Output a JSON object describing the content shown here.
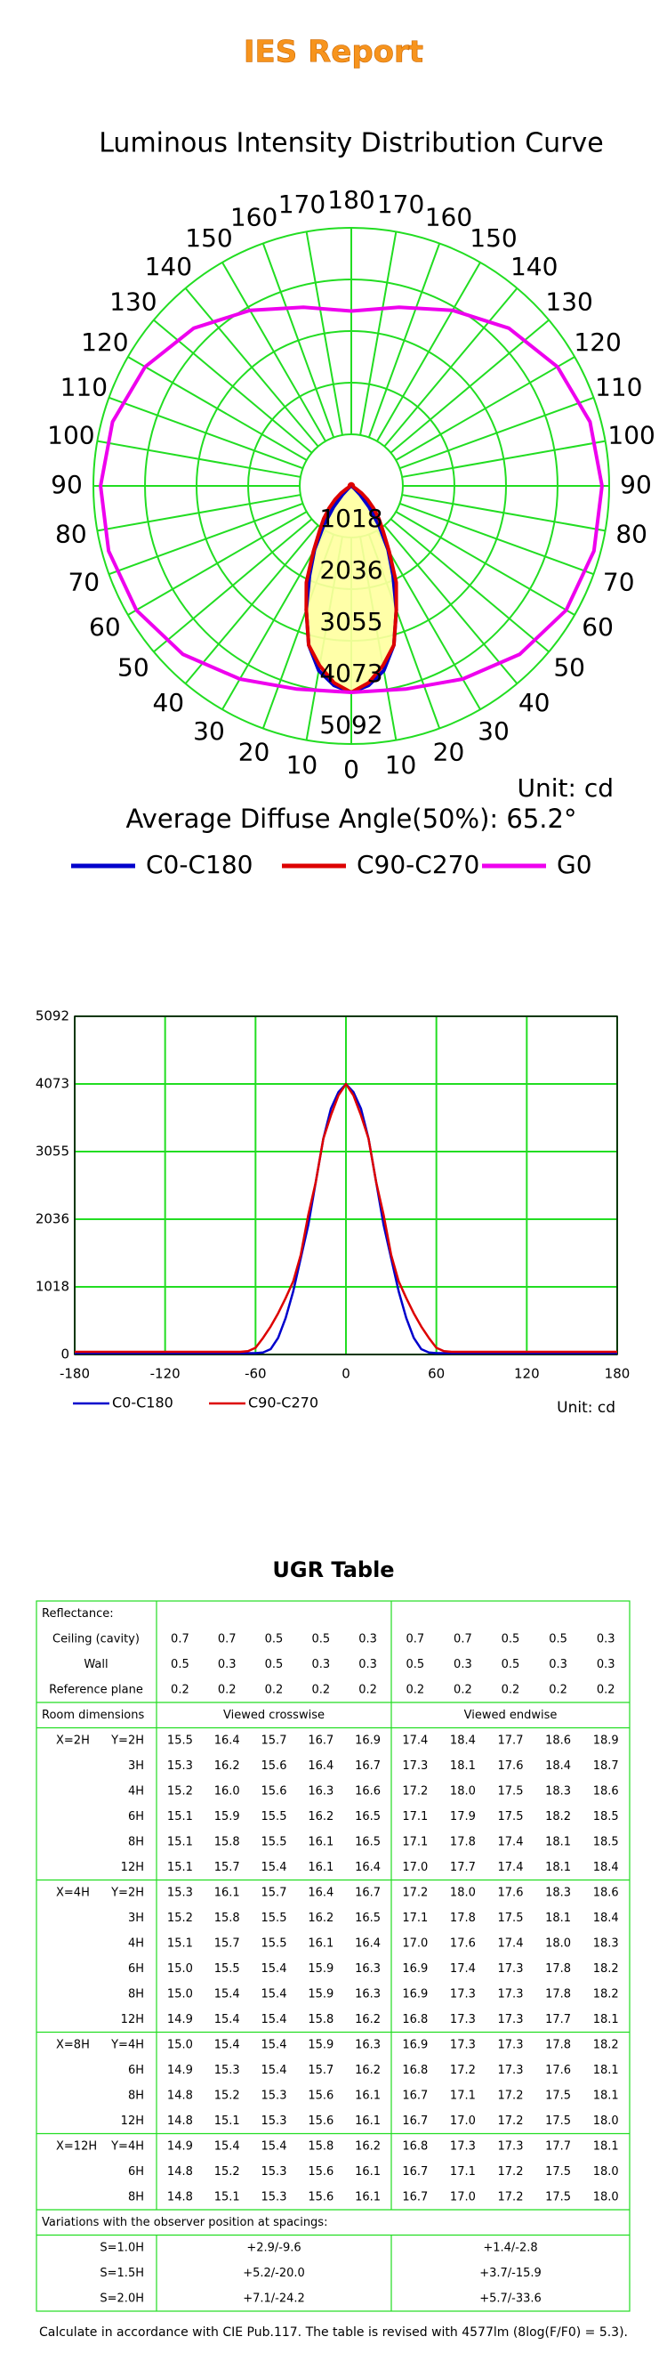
{
  "header": {
    "title": "IES Report"
  },
  "chart_data": [
    {
      "type": "polar",
      "title": "Luminous Intensity Distribution Curve",
      "rlim": [
        0,
        5092
      ],
      "rticks": [
        1018,
        2036,
        3055,
        4073,
        5092
      ],
      "angle_ticks": [
        0,
        10,
        20,
        30,
        40,
        50,
        60,
        70,
        80,
        90,
        100,
        110,
        120,
        130,
        140,
        150,
        160,
        170,
        180
      ],
      "grid": true,
      "unit_label": "Unit: cd",
      "annotation": "Average Diffuse Angle(50%): 65.2°",
      "series": [
        {
          "name": "C0-C180",
          "color": "#0000cc",
          "x": [
            -180,
            -150,
            -120,
            -90,
            -70,
            -65,
            -60,
            -55,
            -50,
            -45,
            -40,
            -35,
            -30,
            -25,
            -20,
            -15,
            -10,
            -5,
            0,
            5,
            10,
            15,
            20,
            25,
            30,
            35,
            40,
            45,
            50,
            55,
            60,
            65,
            70,
            90,
            120,
            150,
            180
          ],
          "values": [
            20,
            20,
            20,
            20,
            20,
            20,
            20,
            30,
            80,
            250,
            550,
            950,
            1450,
            1950,
            2600,
            3250,
            3700,
            3950,
            4073,
            3950,
            3700,
            3250,
            2600,
            1950,
            1450,
            950,
            550,
            250,
            80,
            30,
            20,
            20,
            20,
            20,
            20,
            20,
            20
          ]
        },
        {
          "name": "C90-C270",
          "color": "#dd0000",
          "x": [
            -180,
            -150,
            -120,
            -90,
            -70,
            -65,
            -60,
            -55,
            -50,
            -45,
            -40,
            -35,
            -30,
            -25,
            -20,
            -15,
            -10,
            -5,
            0,
            5,
            10,
            15,
            20,
            25,
            30,
            35,
            40,
            45,
            50,
            55,
            60,
            65,
            70,
            90,
            120,
            150,
            180
          ],
          "values": [
            40,
            40,
            40,
            40,
            40,
            50,
            100,
            250,
            420,
            620,
            850,
            1100,
            1500,
            2100,
            2600,
            3250,
            3600,
            3900,
            4073,
            3900,
            3600,
            3250,
            2600,
            2100,
            1500,
            1100,
            850,
            620,
            420,
            250,
            100,
            50,
            40,
            40,
            40,
            40,
            40
          ]
        },
        {
          "name": "G0",
          "color": "#ee00ee",
          "x": [
            -180,
            -165,
            -150,
            -135,
            -120,
            -105,
            -90,
            -75,
            -60,
            -45,
            -30,
            -15,
            0,
            15,
            30,
            45,
            60,
            75,
            90,
            105,
            120,
            135,
            150,
            165,
            180
          ],
          "values": [
            3450,
            3650,
            4000,
            4400,
            4700,
            4880,
            4950,
            4960,
            4900,
            4700,
            4400,
            4150,
            4073,
            4150,
            4400,
            4700,
            4900,
            4960,
            4950,
            4880,
            4700,
            4400,
            4000,
            3650,
            3450
          ]
        }
      ]
    },
    {
      "type": "line",
      "xlim": [
        -180,
        180
      ],
      "xticks": [
        -180,
        -120,
        -60,
        0,
        60,
        120,
        180
      ],
      "ylim": [
        0,
        5092
      ],
      "yticks": [
        0,
        1018,
        2036,
        3055,
        4073,
        5092
      ],
      "grid": true,
      "unit_label": "Unit: cd",
      "series": [
        {
          "name": "C0-C180",
          "color": "#0000cc",
          "x": [
            -180,
            -150,
            -120,
            -90,
            -70,
            -65,
            -60,
            -55,
            -50,
            -45,
            -40,
            -35,
            -30,
            -25,
            -20,
            -15,
            -10,
            -5,
            0,
            5,
            10,
            15,
            20,
            25,
            30,
            35,
            40,
            45,
            50,
            55,
            60,
            65,
            70,
            90,
            120,
            150,
            180
          ],
          "values": [
            20,
            20,
            20,
            20,
            20,
            20,
            20,
            30,
            80,
            250,
            550,
            950,
            1450,
            1950,
            2600,
            3250,
            3700,
            3950,
            4073,
            3950,
            3700,
            3250,
            2600,
            1950,
            1450,
            950,
            550,
            250,
            80,
            30,
            20,
            20,
            20,
            20,
            20,
            20,
            20
          ]
        },
        {
          "name": "C90-C270",
          "color": "#dd0000",
          "x": [
            -180,
            -150,
            -120,
            -90,
            -70,
            -65,
            -60,
            -55,
            -50,
            -45,
            -40,
            -35,
            -30,
            -25,
            -20,
            -15,
            -10,
            -5,
            0,
            5,
            10,
            15,
            20,
            25,
            30,
            35,
            40,
            45,
            50,
            55,
            60,
            65,
            70,
            90,
            120,
            150,
            180
          ],
          "values": [
            40,
            40,
            40,
            40,
            40,
            50,
            100,
            250,
            420,
            620,
            850,
            1100,
            1500,
            2100,
            2600,
            3250,
            3600,
            3900,
            4073,
            3900,
            3600,
            3250,
            2600,
            2100,
            1500,
            1100,
            850,
            620,
            420,
            250,
            100,
            50,
            40,
            40,
            40,
            40,
            40
          ]
        }
      ]
    }
  ],
  "table": {
    "title": "UGR Table",
    "reflectance_label": "Reflectance:",
    "reflectance": [
      {
        "label": "Ceiling (cavity)",
        "cells": [
          "0.7",
          "0.7",
          "0.5",
          "0.5",
          "0.3",
          "0.7",
          "0.7",
          "0.5",
          "0.5",
          "0.3"
        ]
      },
      {
        "label": "Wall",
        "cells": [
          "0.5",
          "0.3",
          "0.5",
          "0.3",
          "0.3",
          "0.5",
          "0.3",
          "0.5",
          "0.3",
          "0.3"
        ]
      },
      {
        "label": "Reference plane",
        "cells": [
          "0.2",
          "0.2",
          "0.2",
          "0.2",
          "0.2",
          "0.2",
          "0.2",
          "0.2",
          "0.2",
          "0.2"
        ]
      }
    ],
    "room_label": "Room dimensions",
    "crosswise": "Viewed crosswise",
    "endwise": "Viewed endwise",
    "sections": [
      {
        "x": "X=2H",
        "rows": [
          {
            "y": "Y=2H",
            "cells": [
              "15.5",
              "16.4",
              "15.7",
              "16.7",
              "16.9",
              "17.4",
              "18.4",
              "17.7",
              "18.6",
              "18.9"
            ]
          },
          {
            "y": "3H",
            "cells": [
              "15.3",
              "16.2",
              "15.6",
              "16.4",
              "16.7",
              "17.3",
              "18.1",
              "17.6",
              "18.4",
              "18.7"
            ]
          },
          {
            "y": "4H",
            "cells": [
              "15.2",
              "16.0",
              "15.6",
              "16.3",
              "16.6",
              "17.2",
              "18.0",
              "17.5",
              "18.3",
              "18.6"
            ]
          },
          {
            "y": "6H",
            "cells": [
              "15.1",
              "15.9",
              "15.5",
              "16.2",
              "16.5",
              "17.1",
              "17.9",
              "17.5",
              "18.2",
              "18.5"
            ]
          },
          {
            "y": "8H",
            "cells": [
              "15.1",
              "15.8",
              "15.5",
              "16.1",
              "16.5",
              "17.1",
              "17.8",
              "17.4",
              "18.1",
              "18.5"
            ]
          },
          {
            "y": "12H",
            "cells": [
              "15.1",
              "15.7",
              "15.4",
              "16.1",
              "16.4",
              "17.0",
              "17.7",
              "17.4",
              "18.1",
              "18.4"
            ]
          }
        ]
      },
      {
        "x": "X=4H",
        "rows": [
          {
            "y": "Y=2H",
            "cells": [
              "15.3",
              "16.1",
              "15.7",
              "16.4",
              "16.7",
              "17.2",
              "18.0",
              "17.6",
              "18.3",
              "18.6"
            ]
          },
          {
            "y": "3H",
            "cells": [
              "15.2",
              "15.8",
              "15.5",
              "16.2",
              "16.5",
              "17.1",
              "17.8",
              "17.5",
              "18.1",
              "18.4"
            ]
          },
          {
            "y": "4H",
            "cells": [
              "15.1",
              "15.7",
              "15.5",
              "16.1",
              "16.4",
              "17.0",
              "17.6",
              "17.4",
              "18.0",
              "18.3"
            ]
          },
          {
            "y": "6H",
            "cells": [
              "15.0",
              "15.5",
              "15.4",
              "15.9",
              "16.3",
              "16.9",
              "17.4",
              "17.3",
              "17.8",
              "18.2"
            ]
          },
          {
            "y": "8H",
            "cells": [
              "15.0",
              "15.4",
              "15.4",
              "15.9",
              "16.3",
              "16.9",
              "17.3",
              "17.3",
              "17.8",
              "18.2"
            ]
          },
          {
            "y": "12H",
            "cells": [
              "14.9",
              "15.4",
              "15.4",
              "15.8",
              "16.2",
              "16.8",
              "17.3",
              "17.3",
              "17.7",
              "18.1"
            ]
          }
        ]
      },
      {
        "x": "X=8H",
        "rows": [
          {
            "y": "Y=4H",
            "cells": [
              "15.0",
              "15.4",
              "15.4",
              "15.9",
              "16.3",
              "16.9",
              "17.3",
              "17.3",
              "17.8",
              "18.2"
            ]
          },
          {
            "y": "6H",
            "cells": [
              "14.9",
              "15.3",
              "15.4",
              "15.7",
              "16.2",
              "16.8",
              "17.2",
              "17.3",
              "17.6",
              "18.1"
            ]
          },
          {
            "y": "8H",
            "cells": [
              "14.8",
              "15.2",
              "15.3",
              "15.6",
              "16.1",
              "16.7",
              "17.1",
              "17.2",
              "17.5",
              "18.1"
            ]
          },
          {
            "y": "12H",
            "cells": [
              "14.8",
              "15.1",
              "15.3",
              "15.6",
              "16.1",
              "16.7",
              "17.0",
              "17.2",
              "17.5",
              "18.0"
            ]
          }
        ]
      },
      {
        "x": "X=12H",
        "rows": [
          {
            "y": "Y=4H",
            "cells": [
              "14.9",
              "15.4",
              "15.4",
              "15.8",
              "16.2",
              "16.8",
              "17.3",
              "17.3",
              "17.7",
              "18.1"
            ]
          },
          {
            "y": "6H",
            "cells": [
              "14.8",
              "15.2",
              "15.3",
              "15.6",
              "16.1",
              "16.7",
              "17.1",
              "17.2",
              "17.5",
              "18.0"
            ]
          },
          {
            "y": "8H",
            "cells": [
              "14.8",
              "15.1",
              "15.3",
              "15.6",
              "16.1",
              "16.7",
              "17.0",
              "17.2",
              "17.5",
              "18.0"
            ]
          }
        ]
      }
    ],
    "variations_label": "Variations with the observer position at spacings:",
    "variations": [
      {
        "label": "S=1.0H",
        "crosswise": "+2.9/-9.6",
        "endwise": "+1.4/-2.8"
      },
      {
        "label": "S=1.5H",
        "crosswise": "+5.2/-20.0",
        "endwise": "+3.7/-15.9"
      },
      {
        "label": "S=2.0H",
        "crosswise": "+7.1/-24.2",
        "endwise": "+5.7/-33.6"
      }
    ]
  },
  "footnote": "Calculate in accordance with CIE Pub.117. The table is revised with 4577lm (8log(F/F0) = 5.3)."
}
